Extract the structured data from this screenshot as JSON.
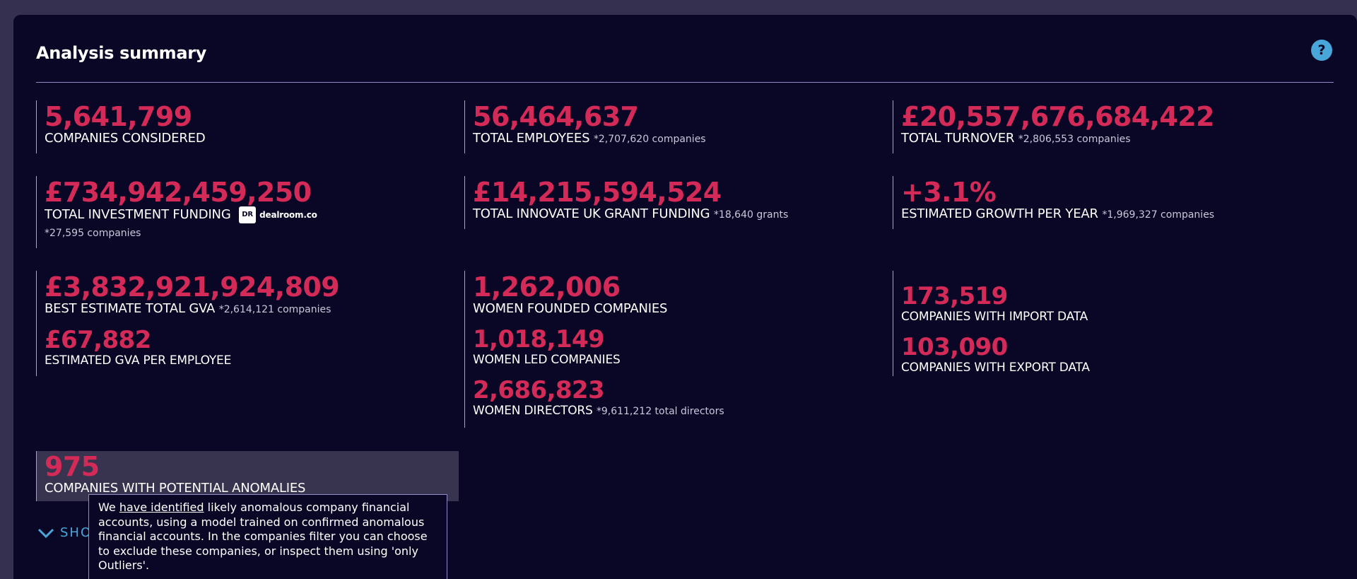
{
  "header": {
    "title": "Analysis summary",
    "help_label": "?"
  },
  "stats": {
    "companies_considered": {
      "value": "5,641,799",
      "label": "COMPANIES CONSIDERED"
    },
    "total_employees": {
      "value": "56,464,637",
      "label": "TOTAL EMPLOYEES",
      "note": "*2,707,620 companies"
    },
    "total_turnover": {
      "value": "£20,557,676,684,422",
      "label": "TOTAL TURNOVER",
      "note": "*2,806,553 companies"
    },
    "investment_funding": {
      "value": "£734,942,459,250",
      "label": "TOTAL INVESTMENT FUNDING",
      "source_badge": "dR",
      "source_name": "dealroom.co",
      "note": "*27,595 companies"
    },
    "innovate_uk": {
      "value": "£14,215,594,524",
      "label": "TOTAL INNOVATE UK GRANT FUNDING",
      "note": "*18,640 grants"
    },
    "growth": {
      "value": "+3.1%",
      "label": "ESTIMATED GROWTH PER YEAR",
      "note": "*1,969,327 companies"
    },
    "gva_total": {
      "value": "£3,832,921,924,809",
      "label": "BEST ESTIMATE TOTAL GVA",
      "note": "*2,614,121 companies"
    },
    "gva_per_employee": {
      "value": "£67,882",
      "label": "ESTIMATED GVA PER EMPLOYEE"
    },
    "women_founded": {
      "value": "1,262,006",
      "label": "WOMEN FOUNDED COMPANIES"
    },
    "women_led": {
      "value": "1,018,149",
      "label": "WOMEN LED COMPANIES"
    },
    "women_directors": {
      "value": "2,686,823",
      "label": "WOMEN DIRECTORS",
      "note": "*9,611,212 total directors"
    },
    "import_data": {
      "value": "173,519",
      "label": "COMPANIES WITH IMPORT DATA"
    },
    "export_data": {
      "value": "103,090",
      "label": "COMPANIES WITH EXPORT DATA"
    },
    "anomalies": {
      "value": "975",
      "label": "COMPANIES WITH POTENTIAL ANOMALIES"
    }
  },
  "show_more": {
    "label": "SHO"
  },
  "tooltip": {
    "prefix": "We ",
    "link": "have identified",
    "text": " likely anomalous company financial accounts, using a model trained on confirmed anomalous financial accounts. In the companies filter you can choose to exclude these companies, or inspect them using 'only Outliers'."
  },
  "colors": {
    "background": "#0a0726",
    "accent_value": "#d42a58",
    "help_button": "#49a6d8"
  }
}
